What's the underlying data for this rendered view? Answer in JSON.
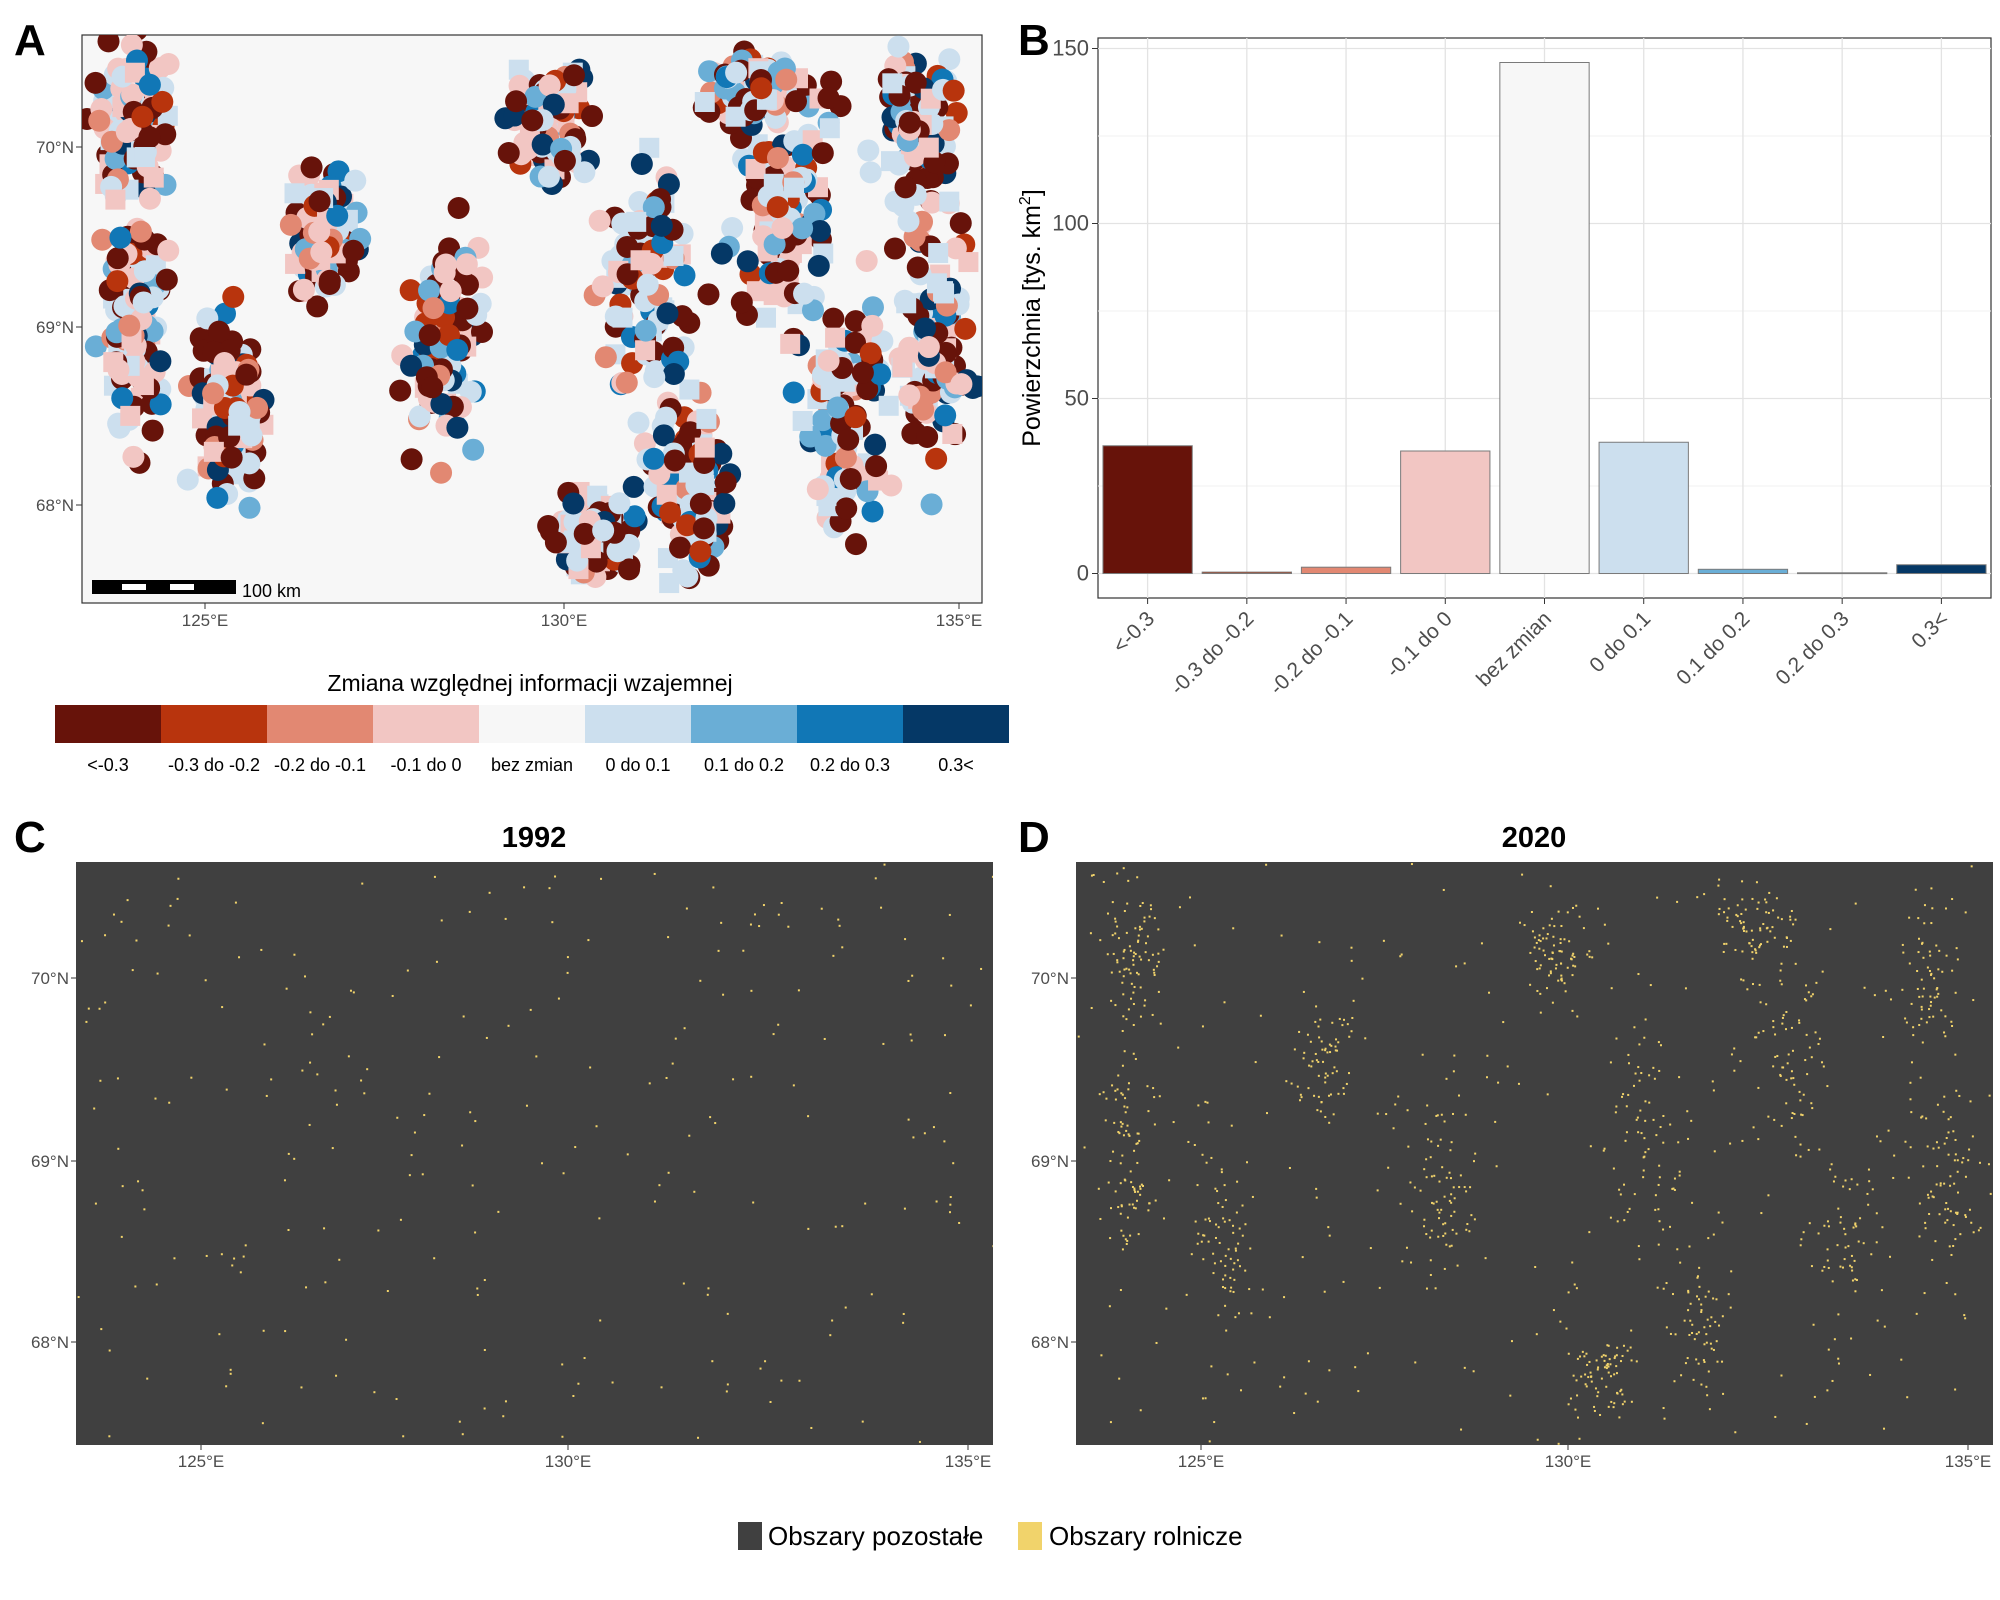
{
  "panels": {
    "a": "A",
    "b": "B",
    "c": "C",
    "d": "D"
  },
  "map_axes": {
    "x_ticks": [
      "125°E",
      "130°E",
      "135°E"
    ],
    "y_ticks": [
      "70°N",
      "69°N",
      "68°N"
    ],
    "scale_bar_label": "100 km"
  },
  "change_legend": {
    "title": "Zmiana względnej informacji wzajemnej",
    "classes": [
      "<-0.3",
      "-0.3 do -0.2",
      "-0.2 do -0.1",
      "-0.1 do 0",
      "bez zmian",
      "0 do 0.1",
      "0.1 do 0.2",
      "0.2 do 0.3",
      "0.3<"
    ],
    "colors": [
      "#67130a",
      "#b8340d",
      "#e28872",
      "#f2c6c3",
      "#f7f7f7",
      "#ccdfee",
      "#6aaed6",
      "#1177b6",
      "#053866"
    ]
  },
  "panel_c": {
    "title": "1992"
  },
  "panel_d": {
    "title": "2020"
  },
  "landuse_legend": {
    "items": [
      {
        "label": "Obszary pozostałe",
        "color": "#404040"
      },
      {
        "label": "Obszary rolnicze",
        "color": "#f1d36b"
      }
    ]
  },
  "chart_data": {
    "type": "bar",
    "ylabel": "Powierzchnia [tys. km",
    "ylabel_sup": "2",
    "ylabel_end": "]",
    "xlabel": "",
    "categories": [
      "<-0.3",
      "-0.3 do -0.2",
      "-0.2 do -0.1",
      "-0.1 do 0",
      "bez zmian",
      "0 do 0.1",
      "0.1 do 0.2",
      "0.2 do 0.3",
      "0.3<"
    ],
    "values": [
      36.5,
      0.4,
      1.8,
      35,
      146,
      37.5,
      1.2,
      0.2,
      2.5
    ],
    "colors": [
      "#67130a",
      "#b8340d",
      "#e28872",
      "#f2c6c3",
      "#f7f7f7",
      "#ccdfee",
      "#6aaed6",
      "#1177b6",
      "#053866"
    ],
    "ylim": [
      -7,
      153
    ],
    "yticks": [
      0,
      50,
      100,
      150
    ],
    "grid": true
  }
}
